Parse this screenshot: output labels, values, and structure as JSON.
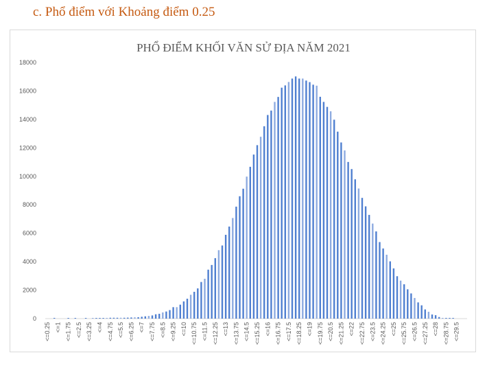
{
  "heading": "c. Phổ điểm với Khoảng điểm 0.25",
  "chart_data": {
    "type": "bar",
    "title": "PHỔ ĐIỂM KHỐI VĂN SỬ ĐỊA NĂM 2021",
    "xlabel": "",
    "ylabel": "",
    "ylim": [
      0,
      18000
    ],
    "yticks": [
      "0",
      "2000",
      "4000",
      "6000",
      "8000",
      "10000",
      "12000",
      "14000",
      "16000",
      "18000"
    ],
    "grid": false,
    "legend": "none",
    "bar_color": "#4f7fd0",
    "bar_color_light": "#8eabe0",
    "x_start": 0.25,
    "x_step": 0.25,
    "tick_every": 3,
    "category_prefix": "<=",
    "values": [
      0,
      0,
      50,
      0,
      0,
      0,
      40,
      0,
      40,
      0,
      0,
      20,
      0,
      30,
      30,
      40,
      40,
      50,
      60,
      60,
      60,
      60,
      60,
      70,
      80,
      90,
      100,
      130,
      160,
      190,
      225,
      305,
      340,
      435,
      500,
      600,
      805,
      805,
      980,
      1210,
      1400,
      1675,
      1885,
      2125,
      2575,
      2800,
      3440,
      3770,
      4250,
      4810,
      5140,
      5890,
      6470,
      7070,
      7870,
      8600,
      9130,
      9980,
      10670,
      11530,
      12190,
      12780,
      13520,
      14310,
      14620,
      15230,
      15580,
      16230,
      16390,
      16630,
      16870,
      17020,
      16870,
      16870,
      16730,
      16620,
      16440,
      16370,
      15590,
      15230,
      14880,
      14570,
      13980,
      13140,
      12380,
      11820,
      11010,
      10510,
      9790,
      9145,
      8485,
      7890,
      7290,
      6680,
      6130,
      5380,
      4930,
      4490,
      4025,
      3530,
      2980,
      2670,
      2415,
      2060,
      1770,
      1450,
      1140,
      935,
      645,
      480,
      290,
      240,
      110,
      50,
      50,
      50,
      50,
      0,
      0,
      0
    ]
  }
}
